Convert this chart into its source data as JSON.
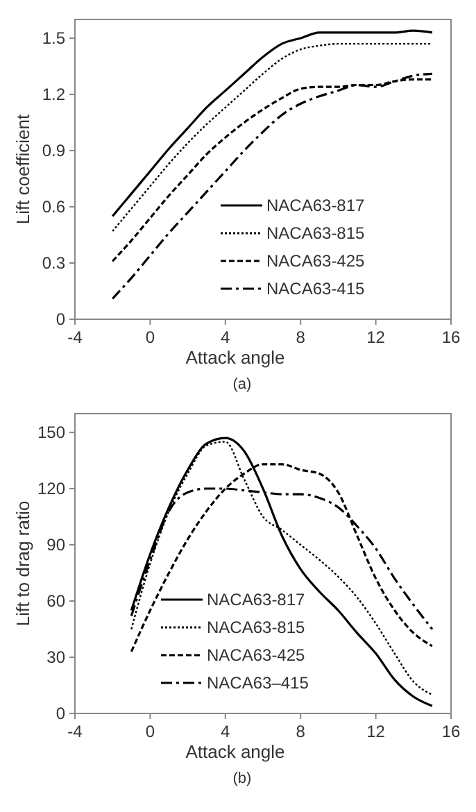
{
  "chart_data": [
    {
      "type": "line",
      "xlabel": "Attack angle",
      "ylabel": "Lift coefficient",
      "annotations": [
        "(a)"
      ],
      "x": [
        -2,
        -1,
        0,
        1,
        2,
        3,
        4,
        5,
        6,
        7,
        8,
        9,
        10,
        11,
        12,
        13,
        14,
        15
      ],
      "xlim": [
        -4,
        16
      ],
      "xticks": [
        -4,
        0,
        4,
        8,
        12,
        16
      ],
      "ylim": [
        0,
        1.6
      ],
      "yticks": [
        0,
        0.3,
        0.6,
        0.9,
        1.2,
        1.5
      ],
      "grid": false,
      "legend": "bottom right",
      "series": [
        {
          "name": "NACA63-817",
          "color": "#000000",
          "line_style": "solid",
          "values": [
            0.55,
            0.67,
            0.79,
            0.91,
            1.02,
            1.13,
            1.22,
            1.31,
            1.4,
            1.47,
            1.5,
            1.53,
            1.53,
            1.53,
            1.53,
            1.53,
            1.54,
            1.53
          ]
        },
        {
          "name": "NACA63-815",
          "color": "#000000",
          "line_style": "dotted",
          "values": [
            0.47,
            0.59,
            0.71,
            0.83,
            0.94,
            1.04,
            1.13,
            1.22,
            1.31,
            1.39,
            1.44,
            1.46,
            1.47,
            1.47,
            1.47,
            1.47,
            1.47,
            1.47
          ]
        },
        {
          "name": "NACA63-425",
          "color": "#000000",
          "line_style": "dashed",
          "values": [
            0.31,
            0.42,
            0.54,
            0.66,
            0.77,
            0.88,
            0.97,
            1.05,
            1.12,
            1.18,
            1.23,
            1.24,
            1.24,
            1.25,
            1.25,
            1.27,
            1.28,
            1.28
          ]
        },
        {
          "name": "NACA63-415",
          "color": "#000000",
          "line_style": "dashdot",
          "values": [
            0.11,
            0.22,
            0.34,
            0.46,
            0.57,
            0.68,
            0.79,
            0.9,
            1.0,
            1.09,
            1.15,
            1.19,
            1.22,
            1.25,
            1.24,
            1.27,
            1.3,
            1.31
          ]
        }
      ]
    },
    {
      "type": "line",
      "xlabel": "Attack angle",
      "ylabel": "Lift to drag ratio",
      "annotations": [
        "(b)"
      ],
      "x": [
        -1,
        0,
        1,
        2,
        3,
        4,
        5,
        6,
        7,
        8,
        9,
        10,
        11,
        12,
        13,
        14,
        15
      ],
      "xlim": [
        -4,
        16
      ],
      "xticks": [
        -4,
        0,
        4,
        8,
        12,
        16
      ],
      "ylim": [
        0,
        160
      ],
      "yticks": [
        0,
        30,
        60,
        90,
        120,
        150
      ],
      "grid": false,
      "legend": "bottom left",
      "series": [
        {
          "name": "NACA63-817",
          "color": "#000000",
          "line_style": "solid",
          "values": [
            55,
            85,
            110,
            130,
            144,
            147,
            140,
            120,
            95,
            77,
            65,
            55,
            43,
            32,
            18,
            9,
            4
          ]
        },
        {
          "name": "NACA63-815",
          "color": "#000000",
          "line_style": "dotted",
          "values": [
            45,
            80,
            108,
            128,
            143,
            145,
            125,
            105,
            98,
            90,
            82,
            73,
            62,
            48,
            32,
            17,
            10
          ]
        },
        {
          "name": "NACA63-425",
          "color": "#000000",
          "line_style": "dashed",
          "values": [
            33,
            55,
            75,
            93,
            108,
            120,
            128,
            133,
            133,
            130,
            128,
            118,
            95,
            72,
            55,
            43,
            36
          ]
        },
        {
          "name": "NACA63–415",
          "color": "#000000",
          "line_style": "dashdot",
          "values": [
            52,
            82,
            108,
            118,
            120,
            120,
            119,
            118,
            117,
            117,
            115,
            110,
            100,
            88,
            72,
            58,
            45
          ]
        }
      ]
    }
  ]
}
